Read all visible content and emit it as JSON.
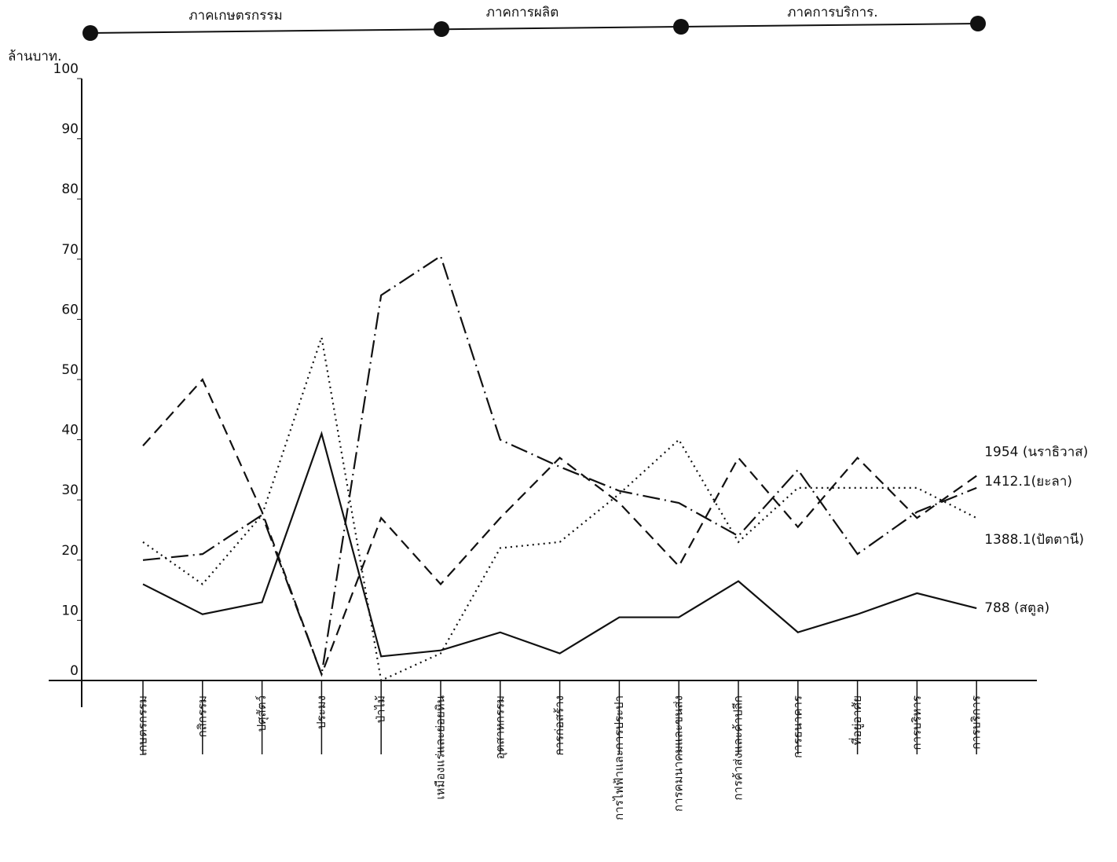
{
  "chart_data": {
    "type": "line",
    "y_label": "ล้านบาท.",
    "sectors": [
      "ภาคเกษตรกรรม",
      "ภาคการผลิต",
      "ภาคการบริการ."
    ],
    "categories": [
      "เกษตรกรรม",
      "กสิกรรม",
      "ปศุสัตว์",
      "ประมง",
      "ป่าไม้",
      "เหมืองแร่และย่อยหิน",
      "อุตสาหกรรม",
      "การก่อสร้าง",
      "การไฟฟ้าและการประปา",
      "การคมนาคมและขนส่ง",
      "การค้าส่งและค้าปลีก",
      "การธนาคาร",
      "ที่อยู่อาศัย",
      "การบริหาร",
      "การบริการ"
    ],
    "series": [
      {
        "name": "1954 (นราธิวาส)",
        "color": "#111111",
        "style": "dashed",
        "values": [
          39,
          50,
          28,
          1,
          27,
          16,
          27,
          37,
          29.5,
          19,
          37,
          25.5,
          37,
          27,
          34
        ]
      },
      {
        "name": "1412.1(ยะลา)",
        "color": "#111111",
        "style": "dashdot",
        "values": [
          20,
          21,
          27.5,
          1,
          64,
          70.5,
          40,
          35.5,
          31.5,
          29.5,
          24,
          35,
          21,
          28,
          32
        ]
      },
      {
        "name": "1388.1(ปัตตานี)",
        "color": "#111111",
        "style": "dotted",
        "values": [
          23,
          16,
          27.5,
          57,
          0,
          4.5,
          22,
          23,
          31,
          40,
          23,
          32,
          32,
          32,
          27
        ]
      },
      {
        "name": "788 (สตูล)",
        "color": "#111111",
        "style": "solid",
        "values": [
          16,
          11,
          13,
          41,
          4,
          5,
          8,
          4.5,
          10.5,
          10.5,
          16.5,
          8,
          11,
          14.5,
          12
        ]
      }
    ],
    "ylim": [
      0,
      100
    ],
    "yticks": [
      0,
      10,
      20,
      30,
      40,
      50,
      60,
      70,
      80,
      90,
      100
    ]
  }
}
